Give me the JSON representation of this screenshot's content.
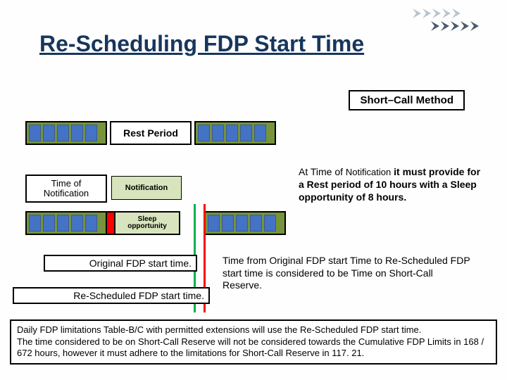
{
  "colors": {
    "title": "#17365d",
    "timeline_bg": "#77933c",
    "cell_fill": "#4472c4",
    "cell_border": "#385d8a",
    "notif_bg": "#d7e4bd",
    "vline_green": "#00b050",
    "vline_red": "#ff0000",
    "chevron_dark": "#4a5a6a",
    "chevron_light": "#b8c4d0"
  },
  "title": "Re-Scheduling FDP Start Time",
  "method_label": "Short–Call Method",
  "rest_period_label": "Rest Period",
  "time_of_notification_line1": "Time of",
  "time_of_notification_line2": "Notification",
  "notification_label": "Notification",
  "sleep_line1": "Sleep",
  "sleep_line2": "opportunity",
  "original_fdp_label": "Original FDP start time.",
  "rescheduled_fdp_label": "Re-Scheduled FDP start time.",
  "rule_html": "At Time of <span style='font-weight:normal;font-size:13px'>Notification</span> <b>it must provide for a Rest period of 10 hours with a Sleep opportunity of 8 hours.</b>",
  "reserve_text": "Time from Original FDP start Time to Re-Scheduled FDP start time is considered to be Time on Short-Call Reserve.",
  "footer_text": "Daily FDP limitations Table-B/C with permitted extensions will use the Re-Scheduled FDP start time.\nThe time considered to be on Short-Call Reserve will not be considered towards the Cumulative FDP Limits in 168 / 672 hours, however it must adhere to the limitations for Short-Call Reserve in 117. 21."
}
